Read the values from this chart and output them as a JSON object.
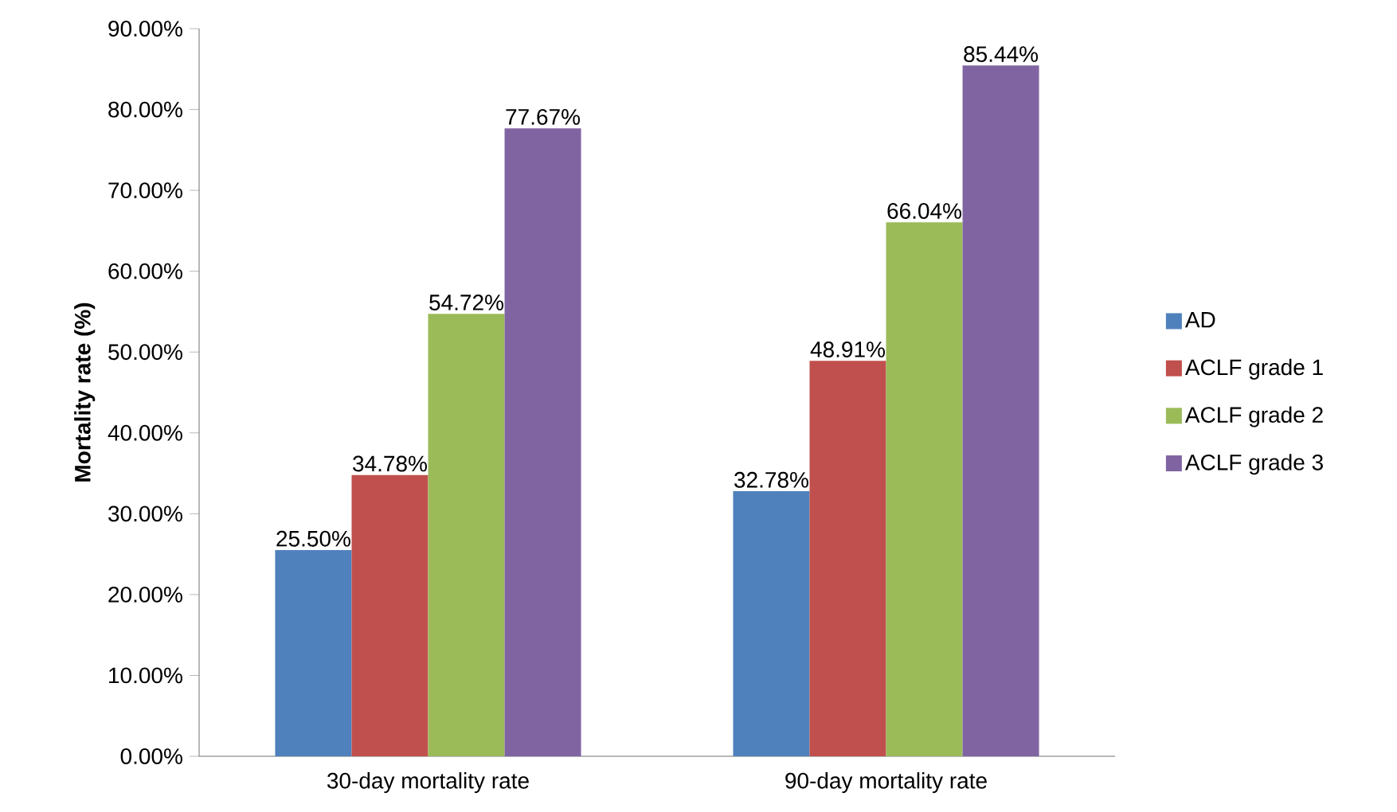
{
  "chart_data": {
    "type": "bar",
    "ylabel": "Mortality rate (%)",
    "categories": [
      "30-day mortality rate",
      "90-day mortality rate"
    ],
    "series": [
      {
        "name": "AD",
        "color": "#4f81bd",
        "values": [
          25.5,
          32.78
        ],
        "value_labels": [
          "25.50%",
          "32.78%"
        ]
      },
      {
        "name": "ACLF grade 1",
        "color": "#c0504d",
        "values": [
          34.78,
          48.91
        ],
        "value_labels": [
          "34.78%",
          "48.91%"
        ]
      },
      {
        "name": "ACLF grade 2",
        "color": "#9bbb59",
        "values": [
          54.72,
          66.04
        ],
        "value_labels": [
          "54.72%",
          "66.04%"
        ]
      },
      {
        "name": "ACLF grade 3",
        "color": "#8064a2",
        "values": [
          77.67,
          85.44
        ],
        "value_labels": [
          "77.67%",
          "85.44%"
        ]
      }
    ],
    "ylim": [
      0,
      90
    ],
    "yticks": [
      {
        "value": 0,
        "label": "0.00%"
      },
      {
        "value": 10,
        "label": "10.00%"
      },
      {
        "value": 20,
        "label": "20.00%"
      },
      {
        "value": 30,
        "label": "30.00%"
      },
      {
        "value": 40,
        "label": "40.00%"
      },
      {
        "value": 50,
        "label": "50.00%"
      },
      {
        "value": 60,
        "label": "60.00%"
      },
      {
        "value": 70,
        "label": "70.00%"
      },
      {
        "value": 80,
        "label": "80.00%"
      },
      {
        "value": 90,
        "label": "90.00%"
      }
    ],
    "grid": false,
    "legend": "right"
  }
}
